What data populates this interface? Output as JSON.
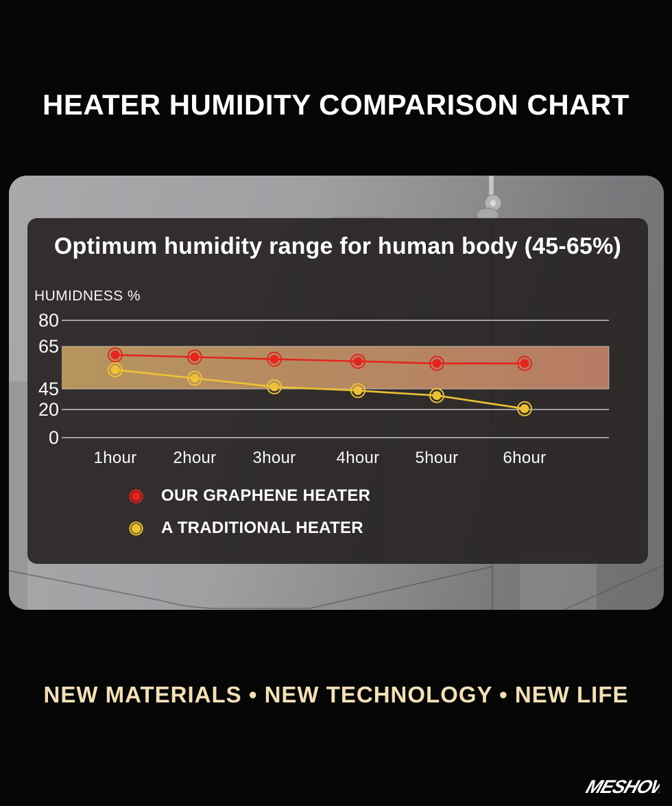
{
  "page": {
    "background_color": "#060606",
    "title": "HEATER HUMIDITY COMPARISON CHART",
    "tagline": "NEW MATERIALS •  NEW TECHNOLOGY • NEW LIFE",
    "brand": "MESHOW"
  },
  "chart_card": {
    "title": "Optimum humidity range for human body (45-65%)"
  },
  "chart_data": {
    "type": "line",
    "title": "Optimum humidity range for human body (45-65%)",
    "xlabel": "",
    "ylabel": "HUMIDNESS %",
    "categories": [
      "1hour",
      "2hour",
      "3hour",
      "4hour",
      "5hour",
      "6hour"
    ],
    "y_ticks": [
      80,
      65,
      45,
      20,
      0
    ],
    "ylim": [
      0,
      80
    ],
    "grid": true,
    "legend_position": "bottom-left",
    "highlight_band": {
      "from": 45,
      "to": 65,
      "meaning": "Optimum humidity range for human body (45-65%)",
      "color_left": "#b6955e",
      "color_right": "#b77c64"
    },
    "series": [
      {
        "name": "OUR GRAPHENE HEATER",
        "color": "#e3251d",
        "values": [
          61,
          60,
          59,
          58,
          57,
          57
        ]
      },
      {
        "name": "A TRADITIONAL HEATER",
        "color": "#edc135",
        "values": [
          54,
          50,
          46,
          43,
          37,
          21
        ]
      }
    ]
  }
}
